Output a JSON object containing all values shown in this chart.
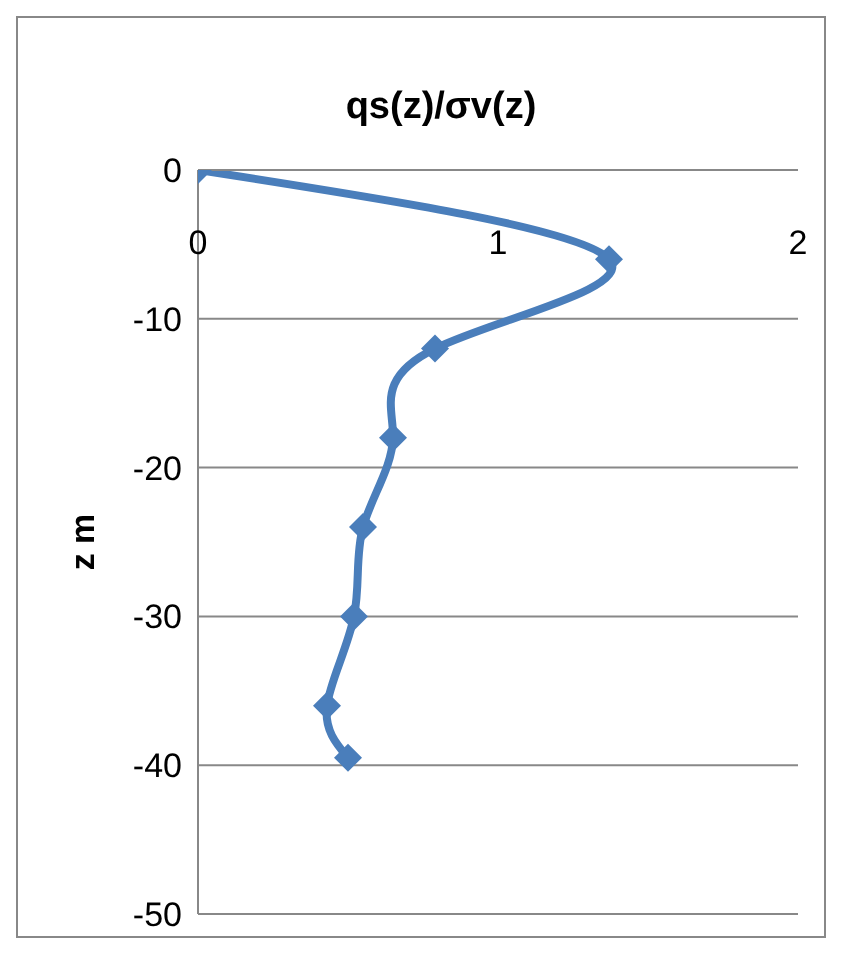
{
  "chart_data": {
    "type": "line",
    "title": "qs(z)/σv(z)",
    "ylabel": "z m",
    "x": [
      0,
      1.37,
      0.79,
      0.65,
      0.55,
      0.52,
      0.43,
      0.5
    ],
    "values": [
      0,
      -6,
      -12,
      -18,
      -24,
      -30,
      -36,
      -39.5
    ],
    "color": "#4a7ebb",
    "marker": "diamond",
    "line_style": "solid",
    "xlim": [
      0,
      2
    ],
    "xticks": [
      0,
      1,
      2
    ],
    "ylim": [
      -50,
      0
    ],
    "yticks": [
      -50,
      -40,
      -30,
      -20,
      -10,
      0
    ],
    "grid": "y"
  }
}
